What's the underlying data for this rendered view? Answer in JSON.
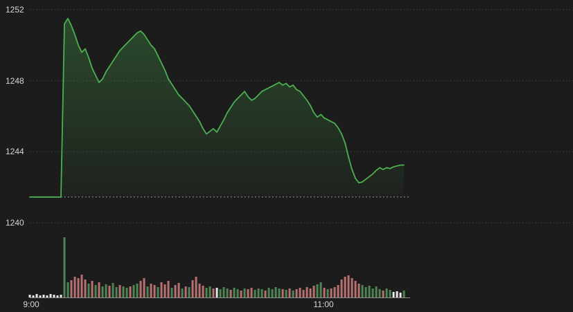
{
  "colors": {
    "background": "#1c1c1c",
    "label": "#d6d6d6",
    "grid": "#424242",
    "reference": "#b8b8b8",
    "line": "#4caf50",
    "area_top": "rgba(76,175,80,0.33)",
    "area_bottom": "rgba(76,175,80,0.04)",
    "axis_line": "#8a8a8a"
  },
  "chart_data": [
    {
      "type": "area",
      "title": "",
      "xlabel": "",
      "ylabel": "",
      "x_ticks": [
        "9:00",
        "11:00"
      ],
      "y_ticks": [
        1252,
        1248,
        1244,
        1240
      ],
      "ylim": [
        1240,
        1252
      ],
      "grid": "dotted-horizontal",
      "legend": "none",
      "reference_value": 1241.45,
      "reference_style": "dotted",
      "open_value": 1241.45,
      "session_high": 1251.5,
      "session_low": 1242.25,
      "last_value": 1243.25,
      "values": [
        1241.45,
        1241.45,
        1241.45,
        1241.45,
        1241.45,
        1241.45,
        1241.45,
        1241.45,
        1241.45,
        1241.45,
        1251.2,
        1251.5,
        1251.1,
        1250.6,
        1250.0,
        1249.6,
        1249.8,
        1249.3,
        1248.7,
        1248.3,
        1247.9,
        1248.1,
        1248.5,
        1248.8,
        1249.1,
        1249.4,
        1249.7,
        1249.9,
        1250.1,
        1250.3,
        1250.5,
        1250.7,
        1250.8,
        1250.6,
        1250.3,
        1250.0,
        1249.8,
        1249.4,
        1249.0,
        1248.6,
        1248.1,
        1247.8,
        1247.5,
        1247.2,
        1247.0,
        1246.8,
        1246.6,
        1246.3,
        1246.0,
        1245.7,
        1245.3,
        1245.0,
        1245.15,
        1245.3,
        1245.1,
        1245.45,
        1245.8,
        1246.2,
        1246.5,
        1246.8,
        1247.0,
        1247.2,
        1247.4,
        1247.1,
        1246.9,
        1247.0,
        1247.2,
        1247.4,
        1247.5,
        1247.6,
        1247.7,
        1247.8,
        1247.9,
        1247.75,
        1247.85,
        1247.65,
        1247.75,
        1247.5,
        1247.4,
        1247.15,
        1246.9,
        1246.6,
        1246.2,
        1245.95,
        1246.1,
        1245.9,
        1245.8,
        1245.7,
        1245.6,
        1245.35,
        1245.0,
        1244.5,
        1243.7,
        1243.0,
        1242.5,
        1242.25,
        1242.3,
        1242.45,
        1242.6,
        1242.75,
        1242.95,
        1243.1,
        1243.0,
        1243.1,
        1243.05,
        1243.15,
        1243.2,
        1243.25,
        1243.25
      ]
    },
    {
      "type": "bar",
      "title": "volume",
      "color_map": {
        "g": "#4f8455",
        "r": "#b87171",
        "w": "#e9e9e9"
      },
      "heights": [
        4,
        3,
        5,
        3,
        4,
        3,
        5,
        4,
        3,
        4,
        87,
        22,
        25,
        30,
        28,
        33,
        26,
        20,
        24,
        18,
        22,
        16,
        19,
        17,
        21,
        15,
        18,
        16,
        14,
        16,
        18,
        20,
        24,
        28,
        16,
        20,
        18,
        15,
        22,
        19,
        24,
        14,
        18,
        21,
        13,
        16,
        15,
        25,
        30,
        20,
        17,
        14,
        16,
        13,
        14,
        12,
        15,
        13,
        11,
        14,
        12,
        10,
        13,
        12,
        14,
        11,
        13,
        12,
        10,
        14,
        12,
        15,
        13,
        12,
        11,
        13,
        10,
        12,
        14,
        11,
        15,
        13,
        17,
        19,
        22,
        14,
        12,
        13,
        15,
        18,
        26,
        30,
        32,
        28,
        24,
        20,
        18,
        15,
        17,
        13,
        16,
        12,
        10,
        13,
        11,
        8,
        9,
        7,
        10
      ],
      "colors": [
        "w",
        "w",
        "w",
        "w",
        "w",
        "w",
        "w",
        "w",
        "w",
        "w",
        "g",
        "g",
        "r",
        "r",
        "r",
        "r",
        "r",
        "g",
        "r",
        "g",
        "r",
        "g",
        "g",
        "r",
        "g",
        "g",
        "r",
        "g",
        "g",
        "r",
        "g",
        "g",
        "r",
        "r",
        "g",
        "r",
        "r",
        "g",
        "r",
        "r",
        "r",
        "g",
        "r",
        "r",
        "g",
        "r",
        "g",
        "r",
        "r",
        "r",
        "r",
        "g",
        "g",
        "r",
        "w",
        "g",
        "g",
        "g",
        "r",
        "g",
        "g",
        "r",
        "g",
        "r",
        "r",
        "g",
        "g",
        "g",
        "r",
        "g",
        "g",
        "g",
        "g",
        "r",
        "g",
        "r",
        "g",
        "r",
        "r",
        "r",
        "r",
        "r",
        "r",
        "g",
        "g",
        "r",
        "g",
        "r",
        "r",
        "r",
        "r",
        "r",
        "r",
        "r",
        "r",
        "r",
        "g",
        "g",
        "g",
        "g",
        "g",
        "g",
        "r",
        "g",
        "g",
        "w",
        "w",
        "w",
        "g"
      ]
    }
  ]
}
